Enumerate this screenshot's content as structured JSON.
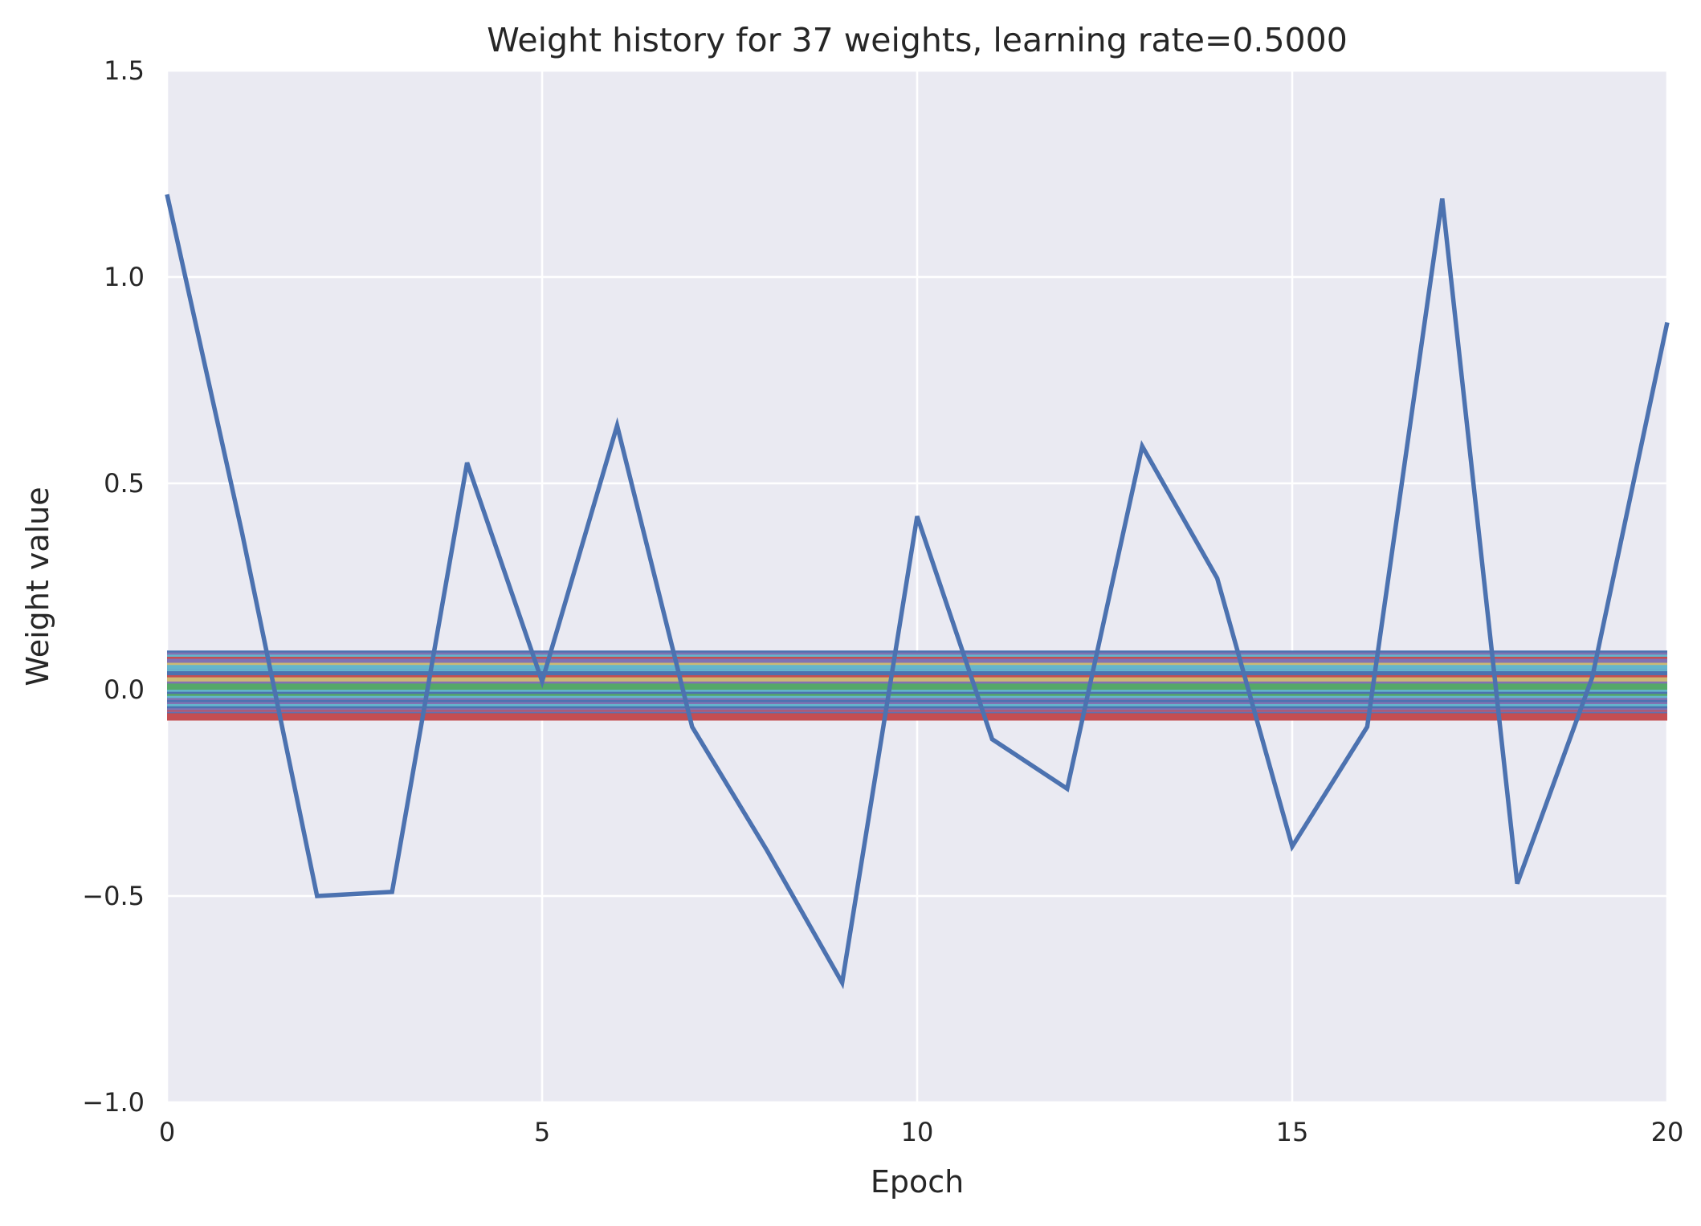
{
  "chart_data": {
    "type": "line",
    "title": "Weight history for 37 weights, learning rate=0.5000",
    "xlabel": "Epoch",
    "ylabel": "Weight value",
    "xlim": [
      0,
      20
    ],
    "ylim": [
      -1.0,
      1.5
    ],
    "x_ticks": [
      "0",
      "5",
      "10",
      "15",
      "20"
    ],
    "y_ticks": [
      "−1.0",
      "−0.5",
      "0.0",
      "0.5",
      "1.0",
      "1.5"
    ],
    "grid": true,
    "legend": "none",
    "background_color": "#eaeaf2",
    "grid_color": "#ffffff",
    "x": [
      0,
      1,
      2,
      3,
      4,
      5,
      6,
      7,
      8,
      9,
      10,
      11,
      12,
      13,
      14,
      15,
      16,
      17,
      18,
      19,
      20
    ],
    "series": [
      {
        "color": "#4c72b0",
        "values": [
          1.2,
          0.38,
          -0.5,
          -0.49,
          0.55,
          0.02,
          0.64,
          -0.09,
          -0.39,
          -0.71,
          0.42,
          -0.12,
          -0.24,
          0.59,
          0.27,
          -0.38,
          -0.09,
          1.19,
          -0.47,
          0.03,
          0.89
        ]
      }
    ],
    "flat_series": [
      {
        "color": "#4c72b0",
        "value": 0.09
      },
      {
        "color": "#8172b2",
        "value": 0.085
      },
      {
        "color": "#64b5cd",
        "value": 0.08
      },
      {
        "color": "#c44e52",
        "value": 0.075
      },
      {
        "color": "#ccb974",
        "value": 0.065
      },
      {
        "color": "#ccb974",
        "value": 0.06
      },
      {
        "color": "#8172b2",
        "value": 0.05
      },
      {
        "color": "#64b5cd",
        "value": 0.045
      },
      {
        "color": "#c44e52",
        "value": 0.035
      },
      {
        "color": "#c44e52",
        "value": 0.03
      },
      {
        "color": "#ccb974",
        "value": 0.02
      },
      {
        "color": "#8172b2",
        "value": 0.015
      },
      {
        "color": "#55a868",
        "value": 0.005
      },
      {
        "color": "#55a868",
        "value": 0.0
      },
      {
        "color": "#64b5cd",
        "value": -0.005
      },
      {
        "color": "#4c72b0",
        "value": -0.01
      },
      {
        "color": "#55a868",
        "value": -0.015
      },
      {
        "color": "#64b5cd",
        "value": -0.02
      },
      {
        "color": "#8172b2",
        "value": -0.025
      },
      {
        "color": "#4c72b0",
        "value": -0.03
      },
      {
        "color": "#8172b2",
        "value": -0.035
      },
      {
        "color": "#64b5cd",
        "value": -0.04
      },
      {
        "color": "#4c72b0",
        "value": -0.045
      },
      {
        "color": "#8172b2",
        "value": -0.05
      },
      {
        "color": "#c44e52",
        "value": -0.055
      },
      {
        "color": "#8172b2",
        "value": -0.058
      },
      {
        "color": "#4c72b0",
        "value": -0.06
      },
      {
        "color": "#c44e52",
        "value": -0.062
      },
      {
        "color": "#c44e52",
        "value": -0.065
      },
      {
        "color": "#c44e52",
        "value": -0.068
      },
      {
        "color": "#c44e52",
        "value": -0.07
      },
      {
        "color": "#8172b2",
        "value": 0.07
      },
      {
        "color": "#64b5cd",
        "value": 0.055
      },
      {
        "color": "#55a868",
        "value": 0.01
      },
      {
        "color": "#ccb974",
        "value": 0.025
      },
      {
        "color": "#4c72b0",
        "value": 0.04
      }
    ]
  }
}
